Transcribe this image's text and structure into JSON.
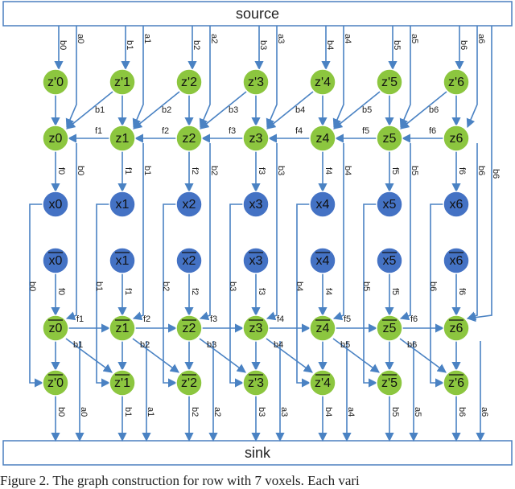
{
  "source_label": "source",
  "sink_label": "sink",
  "caption": "Figure 2. The graph construction for row with 7 voxels. Each vari",
  "colors": {
    "green_node": "#8cc63f",
    "blue_node": "#4472c4",
    "edge": "#4a82c3"
  },
  "columns": [
    {
      "zp": "z'0",
      "z": "z0",
      "x": "x0",
      "xb": "x0",
      "zb": "z0",
      "zbp": "z'0",
      "a": "a0",
      "b": "b0",
      "f": "f0"
    },
    {
      "zp": "z'1",
      "z": "z1",
      "x": "x1",
      "xb": "x1",
      "zb": "z1",
      "zbp": "z'1",
      "a": "a1",
      "b": "b1",
      "f": "f1"
    },
    {
      "zp": "z'2",
      "z": "z2",
      "x": "x2",
      "xb": "x2",
      "zb": "z2",
      "zbp": "z'2",
      "a": "a2",
      "b": "b2",
      "f": "f2"
    },
    {
      "zp": "z'3",
      "z": "z3",
      "x": "x3",
      "xb": "x3",
      "zb": "z3",
      "zbp": "z'3",
      "a": "a3",
      "b": "b3",
      "f": "f3"
    },
    {
      "zp": "z'4",
      "z": "z4",
      "x": "x4",
      "xb": "x4",
      "zb": "z4",
      "zbp": "z'4",
      "a": "a4",
      "b": "b4",
      "f": "f4"
    },
    {
      "zp": "z'5",
      "z": "z5",
      "x": "x5",
      "xb": "x5",
      "zb": "z5",
      "zbp": "z'5",
      "a": "a5",
      "b": "b5",
      "f": "f5"
    },
    {
      "zp": "z'6",
      "z": "z6",
      "x": "x6",
      "xb": "x6",
      "zb": "z6",
      "zbp": "z'6",
      "a": "a6",
      "b": "b6",
      "f": "f6"
    }
  ]
}
